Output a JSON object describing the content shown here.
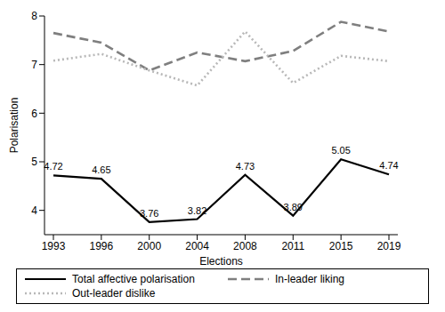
{
  "chart_data": {
    "type": "line",
    "x_label": "Elections",
    "y_label": "Polarisation",
    "categories": [
      "1993",
      "1996",
      "2000",
      "2004",
      "2008",
      "2011",
      "2015",
      "2019"
    ],
    "series": [
      {
        "name": "Total affective polarisation",
        "color": "#000000",
        "line_style": "solid",
        "data_labels": true,
        "values": [
          4.72,
          4.65,
          3.76,
          3.82,
          4.73,
          3.89,
          5.05,
          4.74
        ]
      },
      {
        "name": "In-leader liking",
        "color": "#7f7f7f",
        "line_style": "dashed",
        "values": [
          7.65,
          7.45,
          6.88,
          7.25,
          7.07,
          7.28,
          7.88,
          7.68
        ]
      },
      {
        "name": "Out-leader dislike",
        "color": "#b8b8b8",
        "line_style": "dotted",
        "values": [
          7.08,
          7.22,
          6.88,
          6.57,
          7.68,
          6.62,
          7.18,
          7.07
        ]
      }
    ],
    "ylim": [
      3.5,
      8
    ],
    "yticks": [
      4,
      5,
      6,
      7,
      8
    ],
    "grid": false,
    "legend": "bottom"
  }
}
